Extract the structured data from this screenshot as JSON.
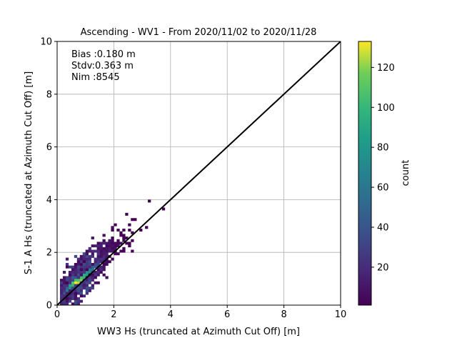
{
  "chart_data": {
    "type": "heatmap",
    "title": "Ascending - WV1 - From 2020/11/02 to 2020/11/28",
    "xlabel": "WW3 Hs (truncated at Azimuth Cut Off) [m]",
    "ylabel": "S-1 A Hs (truncated at Azimuth Cut Off) [m]",
    "xlim": [
      0,
      10
    ],
    "ylim": [
      0,
      10
    ],
    "xticks": [
      "0",
      "2",
      "4",
      "6",
      "8",
      "10"
    ],
    "yticks": [
      "0",
      "2",
      "4",
      "6",
      "8",
      "10"
    ],
    "grid": true,
    "annotations": [
      "Bias :0.180 m",
      "Stdv:0.363 m",
      "Nim :8545"
    ],
    "reference_line": {
      "x": [
        0,
        10
      ],
      "y": [
        0,
        10
      ],
      "color": "#000000"
    },
    "colorbar": {
      "label": "count",
      "range": [
        1,
        133
      ],
      "ticks": [
        "20",
        "40",
        "60",
        "80",
        "100",
        "120"
      ],
      "colormap": "viridis"
    },
    "bins": {
      "x_step": 0.1,
      "y_step": 0.1,
      "cells": [
        [
          0.6,
          0.8,
          133
        ],
        [
          0.7,
          0.8,
          125
        ],
        [
          0.8,
          0.9,
          118
        ],
        [
          0.5,
          0.8,
          112
        ],
        [
          0.7,
          0.9,
          110
        ],
        [
          0.6,
          0.9,
          108
        ],
        [
          0.8,
          1.0,
          104
        ],
        [
          0.9,
          1.0,
          100
        ],
        [
          0.5,
          0.7,
          98
        ],
        [
          0.9,
          1.1,
          95
        ],
        [
          0.4,
          0.7,
          90
        ],
        [
          1.0,
          1.1,
          88
        ],
        [
          1.0,
          1.2,
          80
        ],
        [
          0.4,
          0.6,
          78
        ],
        [
          1.1,
          1.2,
          72
        ],
        [
          0.3,
          0.5,
          65
        ],
        [
          1.1,
          1.3,
          62
        ],
        [
          1.2,
          1.3,
          55
        ],
        [
          0.3,
          0.6,
          52
        ],
        [
          1.2,
          1.4,
          48
        ],
        [
          0.5,
          1.0,
          45
        ],
        [
          1.3,
          1.4,
          42
        ],
        [
          0.2,
          0.4,
          40
        ],
        [
          0.7,
          1.1,
          40
        ],
        [
          1.3,
          1.5,
          36
        ],
        [
          0.6,
          0.6,
          35
        ],
        [
          1.4,
          1.5,
          32
        ],
        [
          1.4,
          1.6,
          28
        ],
        [
          0.8,
          0.7,
          26
        ],
        [
          1.5,
          1.7,
          24
        ],
        [
          1.6,
          1.7,
          20
        ],
        [
          0.2,
          0.3,
          18
        ],
        [
          1.6,
          1.8,
          18
        ],
        [
          1.7,
          1.9,
          15
        ],
        [
          1.8,
          2.0,
          12
        ],
        [
          1.9,
          2.0,
          10
        ],
        [
          2.0,
          2.1,
          8
        ],
        [
          2.1,
          2.2,
          6
        ],
        [
          2.2,
          2.3,
          5
        ],
        [
          2.4,
          2.5,
          4
        ]
      ]
    }
  }
}
